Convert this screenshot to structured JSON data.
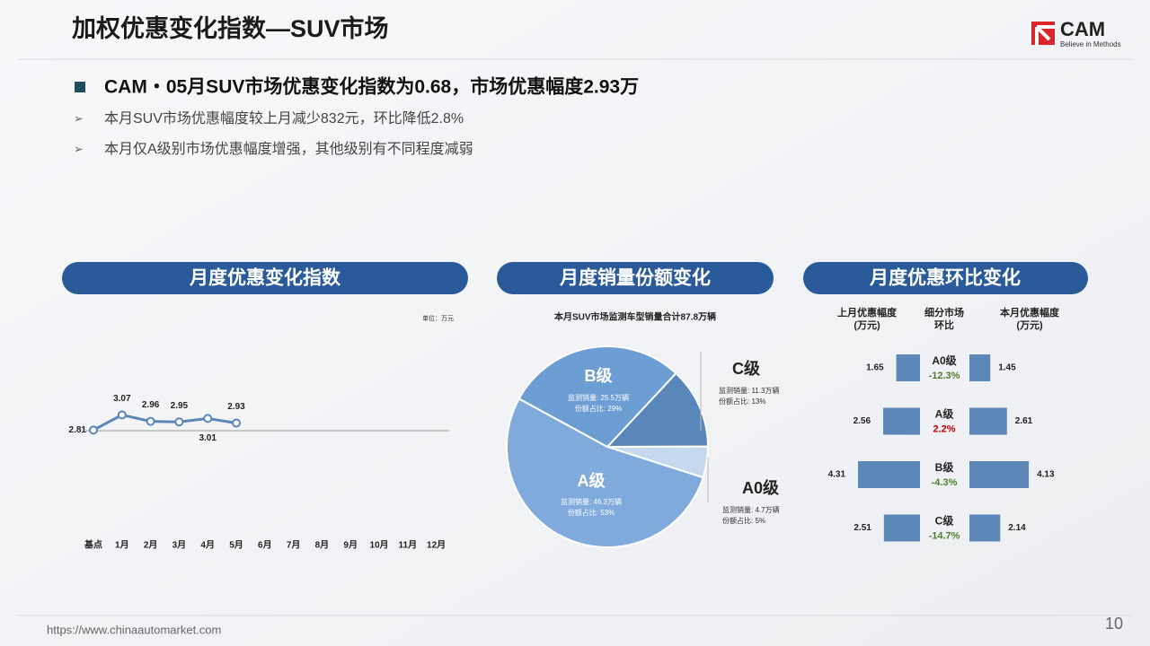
{
  "header": {
    "title": "加权优惠变化指数—SUV市场",
    "logo": "CAM",
    "tagline": "Believe in Methods"
  },
  "bullets": {
    "main": "CAM・05月SUV市场优惠变化指数为0.68，市场优惠幅度2.93万",
    "subs": [
      "本月SUV市场优惠幅度较上月减少832元，环比降低2.8%",
      "本月仅A级别市场优惠幅度增强，其他级别有不同程度减弱"
    ]
  },
  "footer": {
    "url": "https://www.chinaautomarket.com",
    "page": "10"
  },
  "chart_data": [
    {
      "type": "line",
      "title": "月度优惠变化指数",
      "unit": "单位：万元",
      "categories": [
        "基点",
        "1月",
        "2月",
        "3月",
        "4月",
        "5月",
        "6月",
        "7月",
        "8月",
        "9月",
        "10月",
        "11月",
        "12月"
      ],
      "values": [
        2.81,
        3.07,
        2.96,
        2.95,
        3.01,
        2.93,
        null,
        null,
        null,
        null,
        null,
        null,
        null
      ],
      "color": "#5b86b8",
      "ylim": [
        2.8,
        3.6
      ]
    },
    {
      "type": "pie",
      "title": "月度销量份额变化",
      "subtitle": "本月SUV市场监测车型销量合计87.8万辆",
      "categories": [
        "C级",
        "A0级",
        "A级",
        "B级"
      ],
      "values": [
        13,
        5,
        53,
        29
      ],
      "value_labels": [
        "份额占比: 13%",
        "份额占比: 5%",
        "份额占比: 53%",
        "份额占比: 29%"
      ],
      "sales_labels": [
        "监测销量: 11.3万辆",
        "监测销量: 4.7万辆",
        "监测销量: 46.3万辆",
        "监测销量: 25.5万辆"
      ],
      "colors": [
        "#5a87ba",
        "#c5d8ee",
        "#7faadb",
        "#6d9ed3"
      ]
    },
    {
      "type": "butterfly",
      "title": "月度优惠环比变化",
      "headers": [
        [
          "上月优惠幅度",
          "(万元)"
        ],
        [
          "细分市场",
          "环比"
        ],
        [
          "本月优惠幅度",
          "(万元)"
        ]
      ],
      "categories": [
        "A0级",
        "A级",
        "B级",
        "C级"
      ],
      "series": [
        {
          "name": "上月优惠幅度",
          "color": "#5b86b8",
          "values": [
            1.65,
            2.56,
            4.31,
            2.51
          ]
        },
        {
          "name": "本月优惠幅度",
          "color": "#5b86b8",
          "values": [
            1.45,
            2.61,
            4.13,
            2.14
          ]
        }
      ],
      "change": {
        "values": [
          -12.3,
          2.2,
          -4.3,
          -14.7
        ],
        "value_labels": [
          "-12.3%",
          "2.2%",
          "-4.3%",
          "-14.7%"
        ],
        "colors": [
          "#4e7f2a",
          "#c00000",
          "#4e7f2a",
          "#4e7f2a"
        ]
      },
      "xlim": [
        0,
        5
      ]
    }
  ]
}
